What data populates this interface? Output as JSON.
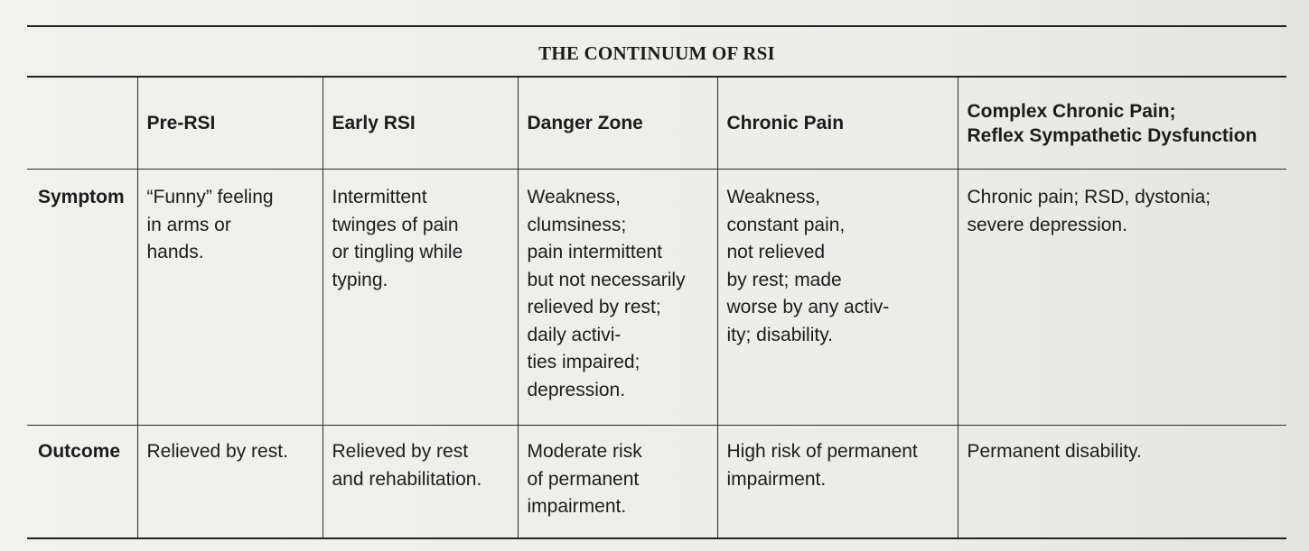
{
  "table": {
    "title": "THE CONTINUUM OF RSI",
    "headers": [
      "",
      "Pre-RSI",
      "Early RSI",
      "Danger Zone",
      "Chronic Pain",
      "Complex Chronic Pain;\nReflex Sympathetic Dysfunction"
    ],
    "rows": [
      {
        "label": "Symptom",
        "cells": [
          "“Funny” feeling\nin arms or\nhands.",
          "Intermittent\ntwinges of pain\nor tingling while\ntyping.",
          "Weakness,\nclumsiness;\npain intermittent\nbut not necessarily\nrelieved by rest;\ndaily activi-\nties impaired;\ndepression.",
          "Weakness,\nconstant pain,\nnot relieved\nby rest; made\nworse by any activ-\nity; disability.",
          "Chronic pain; RSD, dystonia;\nsevere depression."
        ]
      },
      {
        "label": "Outcome",
        "cells": [
          "Relieved by rest.",
          "Relieved by rest\nand rehabilitation.",
          "Moderate risk\nof permanent\nimpairment.",
          "High risk of permanent\nimpairment.",
          "Permanent disability."
        ]
      }
    ]
  }
}
